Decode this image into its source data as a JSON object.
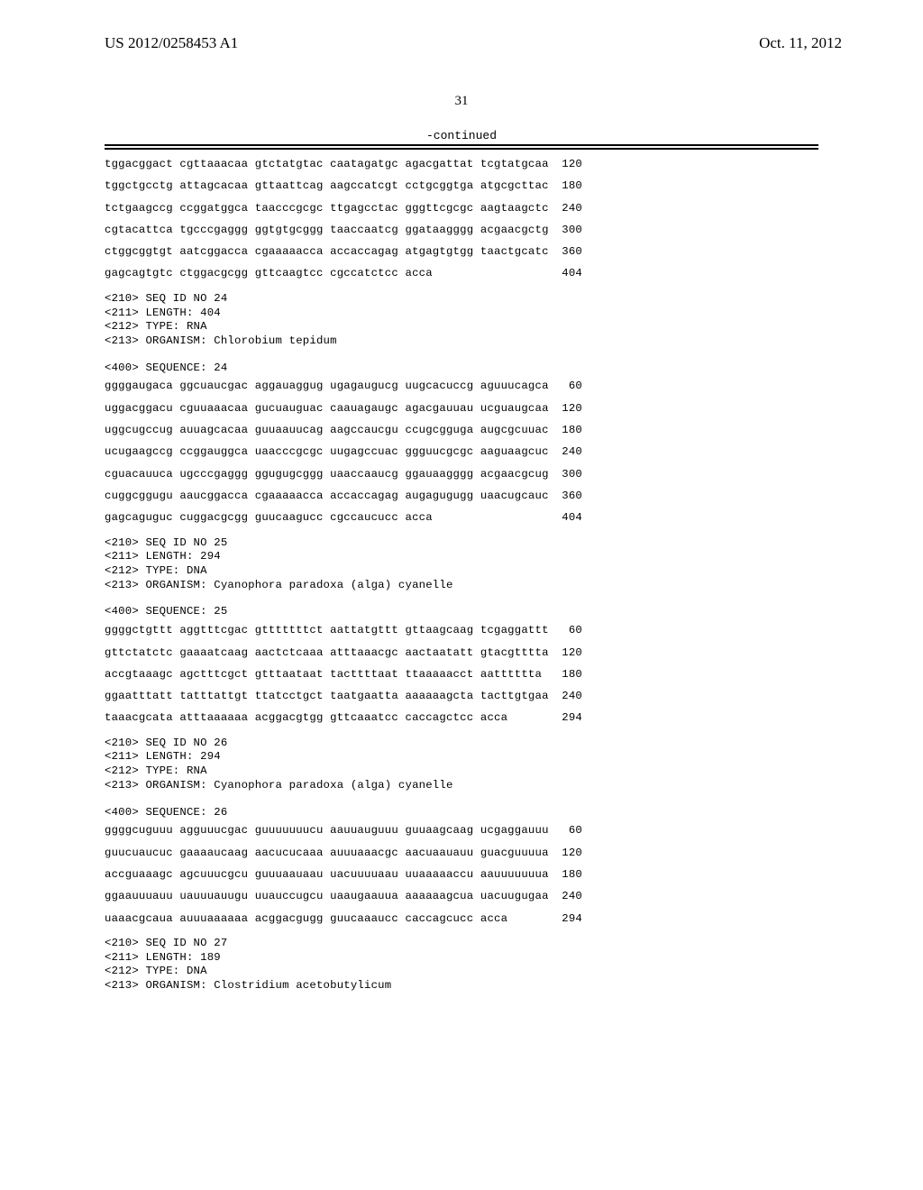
{
  "header": {
    "pub_number": "US 2012/0258453 A1",
    "pub_date": "Oct. 11, 2012"
  },
  "page_number": "31",
  "continued_label": "-continued",
  "blocks": [
    {
      "type": "seq_rows",
      "rows": [
        {
          "groups": "tggacggact cgttaaacaa gtctatgtac caatagatgc agacgattat tcgtatgcaa",
          "pos": "120"
        },
        {
          "groups": "tggctgcctg attagcacaa gttaattcag aagccatcgt cctgcggtga atgcgcttac",
          "pos": "180"
        },
        {
          "groups": "tctgaagccg ccggatggca taacccgcgc ttgagcctac gggttcgcgc aagtaagctc",
          "pos": "240"
        },
        {
          "groups": "cgtacattca tgcccgaggg ggtgtgcggg taaccaatcg ggataagggg acgaacgctg",
          "pos": "300"
        },
        {
          "groups": "ctggcggtgt aatcggacca cgaaaaacca accaccagag atgagtgtgg taactgcatc",
          "pos": "360"
        },
        {
          "groups": "gagcagtgtc ctggacgcgg gttcaagtcc cgccatctcc acca",
          "pos": "404"
        }
      ]
    },
    {
      "type": "meta",
      "lines": [
        "<210> SEQ ID NO 24",
        "<211> LENGTH: 404",
        "<212> TYPE: RNA",
        "<213> ORGANISM: Chlorobium tepidum"
      ]
    },
    {
      "type": "meta",
      "lines": [
        "<400> SEQUENCE: 24"
      ]
    },
    {
      "type": "seq_rows",
      "rows": [
        {
          "groups": "ggggaugaca ggcuaucgac aggauaggug ugagaugucg uugcacuccg aguuucagca",
          "pos": "60"
        },
        {
          "groups": "uggacggacu cguuaaacaa gucuauguac caauagaugc agacgauuau ucguaugcaa",
          "pos": "120"
        },
        {
          "groups": "uggcugccug auuagcacaa guuaauucag aagccaucgu ccugcgguga augcgcuuac",
          "pos": "180"
        },
        {
          "groups": "ucugaagccg ccggauggca uaacccgcgc uugagccuac ggguucgcgc aaguaagcuc",
          "pos": "240"
        },
        {
          "groups": "cguacauuca ugcccgaggg ggugugcggg uaaccaaucg ggauaagggg acgaacgcug",
          "pos": "300"
        },
        {
          "groups": "cuggcggugu aaucggacca cgaaaaacca accaccagag augagugugg uaacugcauc",
          "pos": "360"
        },
        {
          "groups": "gagcaguguc cuggacgcgg guucaagucc cgccaucucc acca",
          "pos": "404"
        }
      ]
    },
    {
      "type": "meta",
      "lines": [
        "<210> SEQ ID NO 25",
        "<211> LENGTH: 294",
        "<212> TYPE: DNA",
        "<213> ORGANISM: Cyanophora paradoxa (alga) cyanelle"
      ]
    },
    {
      "type": "meta",
      "lines": [
        "<400> SEQUENCE: 25"
      ]
    },
    {
      "type": "seq_rows",
      "rows": [
        {
          "groups": "ggggctgttt aggtttcgac gtttttttct aattatgttt gttaagcaag tcgaggattt",
          "pos": "60"
        },
        {
          "groups": "gttctatctc gaaaatcaag aactctcaaa atttaaacgc aactaatatt gtacgtttta",
          "pos": "120"
        },
        {
          "groups": "accgtaaagc agctttcgct gtttaataat tacttttaat ttaaaaacct aatttttta",
          "pos": "180"
        },
        {
          "groups": "ggaatttatt tatttattgt ttatcctgct taatgaatta aaaaaagcta tacttgtgaa",
          "pos": "240"
        },
        {
          "groups": "taaacgcata atttaaaaaa acggacgtgg gttcaaatcc caccagctcc acca",
          "pos": "294"
        }
      ]
    },
    {
      "type": "meta",
      "lines": [
        "<210> SEQ ID NO 26",
        "<211> LENGTH: 294",
        "<212> TYPE: RNA",
        "<213> ORGANISM: Cyanophora paradoxa (alga) cyanelle"
      ]
    },
    {
      "type": "meta",
      "lines": [
        "<400> SEQUENCE: 26"
      ]
    },
    {
      "type": "seq_rows",
      "rows": [
        {
          "groups": "ggggcuguuu agguuucgac guuuuuuucu aauuauguuu guuaagcaag ucgaggauuu",
          "pos": "60"
        },
        {
          "groups": "guucuaucuc gaaaaucaag aacucucaaa auuuaaacgc aacuaauauu guacguuuua",
          "pos": "120"
        },
        {
          "groups": "accguaaagc agcuuucgcu guuuaauaau uacuuuuaau uuaaaaaccu aauuuuuuua",
          "pos": "180"
        },
        {
          "groups": "ggaauuuauu uauuuauugu uuauccugcu uaaugaauua aaaaaagcua uacuugugaa",
          "pos": "240"
        },
        {
          "groups": "uaaacgcaua auuuaaaaaa acggacgugg guucaaaucc caccagcucc acca",
          "pos": "294"
        }
      ]
    },
    {
      "type": "meta",
      "lines": [
        "<210> SEQ ID NO 27",
        "<211> LENGTH: 189",
        "<212> TYPE: DNA",
        "<213> ORGANISM: Clostridium acetobutylicum"
      ]
    }
  ]
}
